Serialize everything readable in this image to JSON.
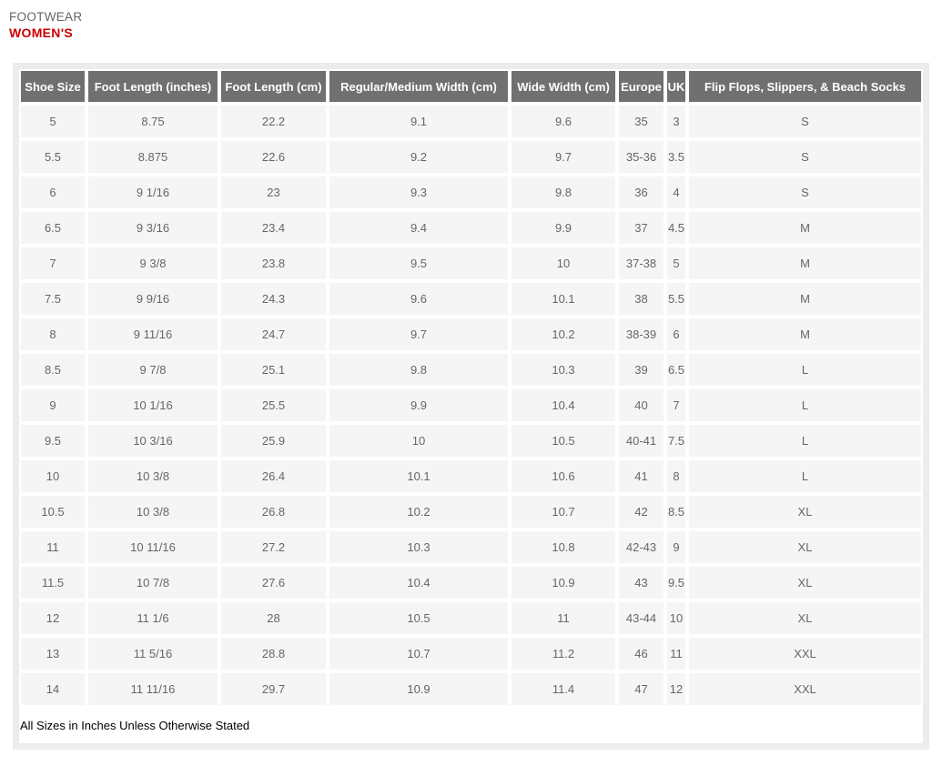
{
  "header": {
    "category": "FOOTWEAR",
    "gender": "WOMEN'S"
  },
  "colors": {
    "category_text": "#666666",
    "gender_text": "#cc0000",
    "table_header_bg": "#707070",
    "table_header_text": "#ffffff",
    "table_cell_bg": "#f5f5f5",
    "table_cell_text": "#666666",
    "frame_border": "#ececec"
  },
  "table": {
    "columns": [
      "Shoe Size",
      "Foot Length (inches)",
      "Foot Length (cm)",
      "Regular/Medium Width (cm)",
      "Wide Width (cm)",
      "Europe",
      "UK",
      "Flip Flops, Slippers, & Beach Socks"
    ],
    "rows": [
      [
        "5",
        "8.75",
        "22.2",
        "9.1",
        "9.6",
        "35",
        "3",
        "S"
      ],
      [
        "5.5",
        "8.875",
        "22.6",
        "9.2",
        "9.7",
        "35-36",
        "3.5",
        "S"
      ],
      [
        "6",
        "9 1/16",
        "23",
        "9.3",
        "9.8",
        "36",
        "4",
        "S"
      ],
      [
        "6.5",
        "9 3/16",
        "23.4",
        "9.4",
        "9.9",
        "37",
        "4.5",
        "M"
      ],
      [
        "7",
        "9 3/8",
        "23.8",
        "9.5",
        "10",
        "37-38",
        "5",
        "M"
      ],
      [
        "7.5",
        "9 9/16",
        "24.3",
        "9.6",
        "10.1",
        "38",
        "5.5",
        "M"
      ],
      [
        "8",
        "9 11/16",
        "24.7",
        "9.7",
        "10.2",
        "38-39",
        "6",
        "M"
      ],
      [
        "8.5",
        "9 7/8",
        "25.1",
        "9.8",
        "10.3",
        "39",
        "6.5",
        "L"
      ],
      [
        "9",
        "10 1/16",
        "25.5",
        "9.9",
        "10.4",
        "40",
        "7",
        "L"
      ],
      [
        "9.5",
        "10 3/16",
        "25.9",
        "10",
        "10.5",
        "40-41",
        "7.5",
        "L"
      ],
      [
        "10",
        "10 3/8",
        "26.4",
        "10.1",
        "10.6",
        "41",
        "8",
        "L"
      ],
      [
        "10.5",
        "10 3/8",
        "26.8",
        "10.2",
        "10.7",
        "42",
        "8.5",
        "XL"
      ],
      [
        "11",
        "10 11/16",
        "27.2",
        "10.3",
        "10.8",
        "42-43",
        "9",
        "XL"
      ],
      [
        "11.5",
        "10 7/8",
        "27.6",
        "10.4",
        "10.9",
        "43",
        "9.5",
        "XL"
      ],
      [
        "12",
        "11 1/6",
        "28",
        "10.5",
        "11",
        "43-44",
        "10",
        "XL"
      ],
      [
        "13",
        "11 5/16",
        "28.8",
        "10.7",
        "11.2",
        "46",
        "11",
        "XXL"
      ],
      [
        "14",
        "11 11/16",
        "29.7",
        "10.9",
        "11.4",
        "47",
        "12",
        "XXL"
      ]
    ]
  },
  "footnote": "All Sizes in Inches Unless Otherwise Stated"
}
